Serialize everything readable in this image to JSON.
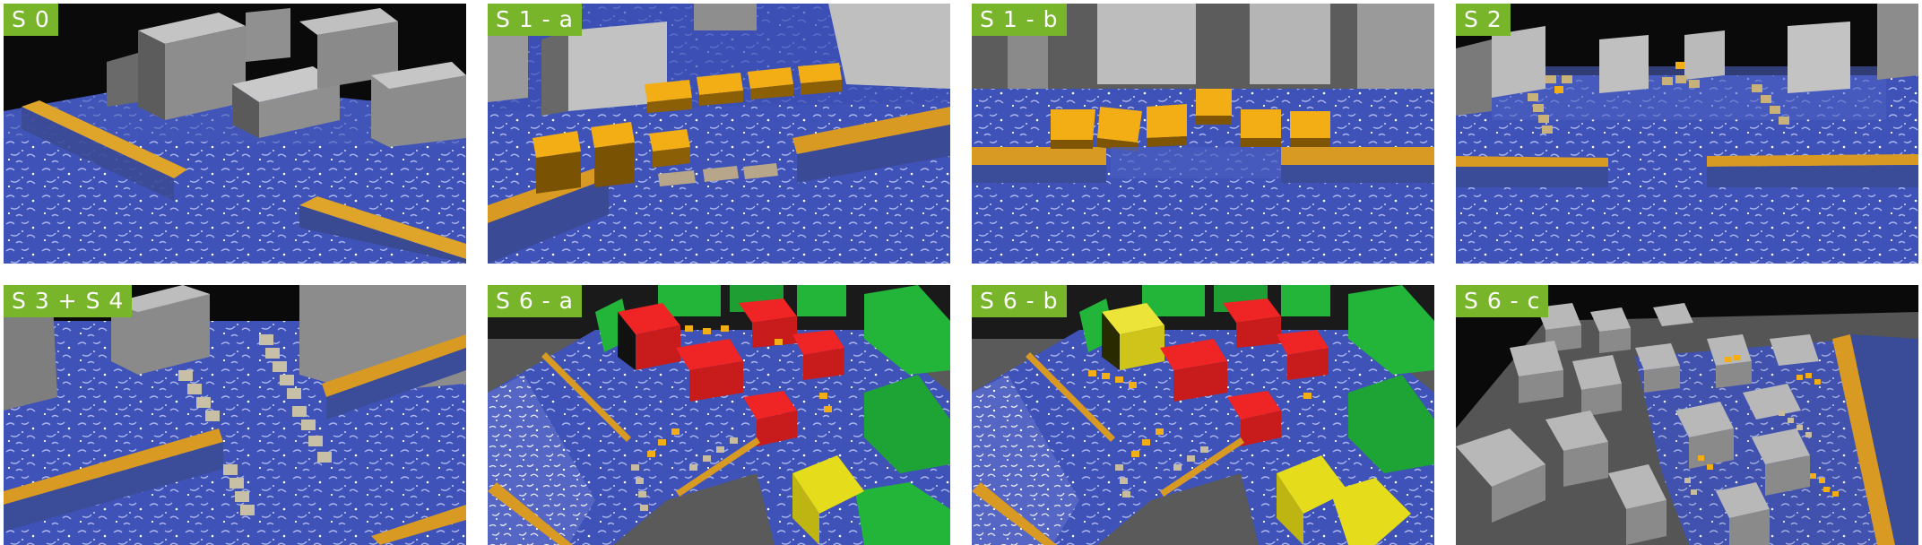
{
  "panels": [
    {
      "id": "s0",
      "label": "S 0"
    },
    {
      "id": "s1a",
      "label": "S 1 - a"
    },
    {
      "id": "s1b",
      "label": "S 1 - b"
    },
    {
      "id": "s2",
      "label": "S 2"
    },
    {
      "id": "s3s4",
      "label": "S 3 + S 4"
    },
    {
      "id": "s6a",
      "label": "S 6 - a"
    },
    {
      "id": "s6b",
      "label": "S 6 - b"
    },
    {
      "id": "s6c",
      "label": "S 6 - c"
    }
  ],
  "colors": {
    "water": "#3f52b8",
    "water_light": "#8a9ce6",
    "building_top": "#bdbdbd",
    "building_side": "#7a7a7a",
    "wall": "#d99a1e",
    "barrier_yellow": "#f0ac12",
    "red": "#e11d1d",
    "green": "#22b53a",
    "yellow": "#e5dc1c",
    "label_bg": "#78b52a"
  }
}
